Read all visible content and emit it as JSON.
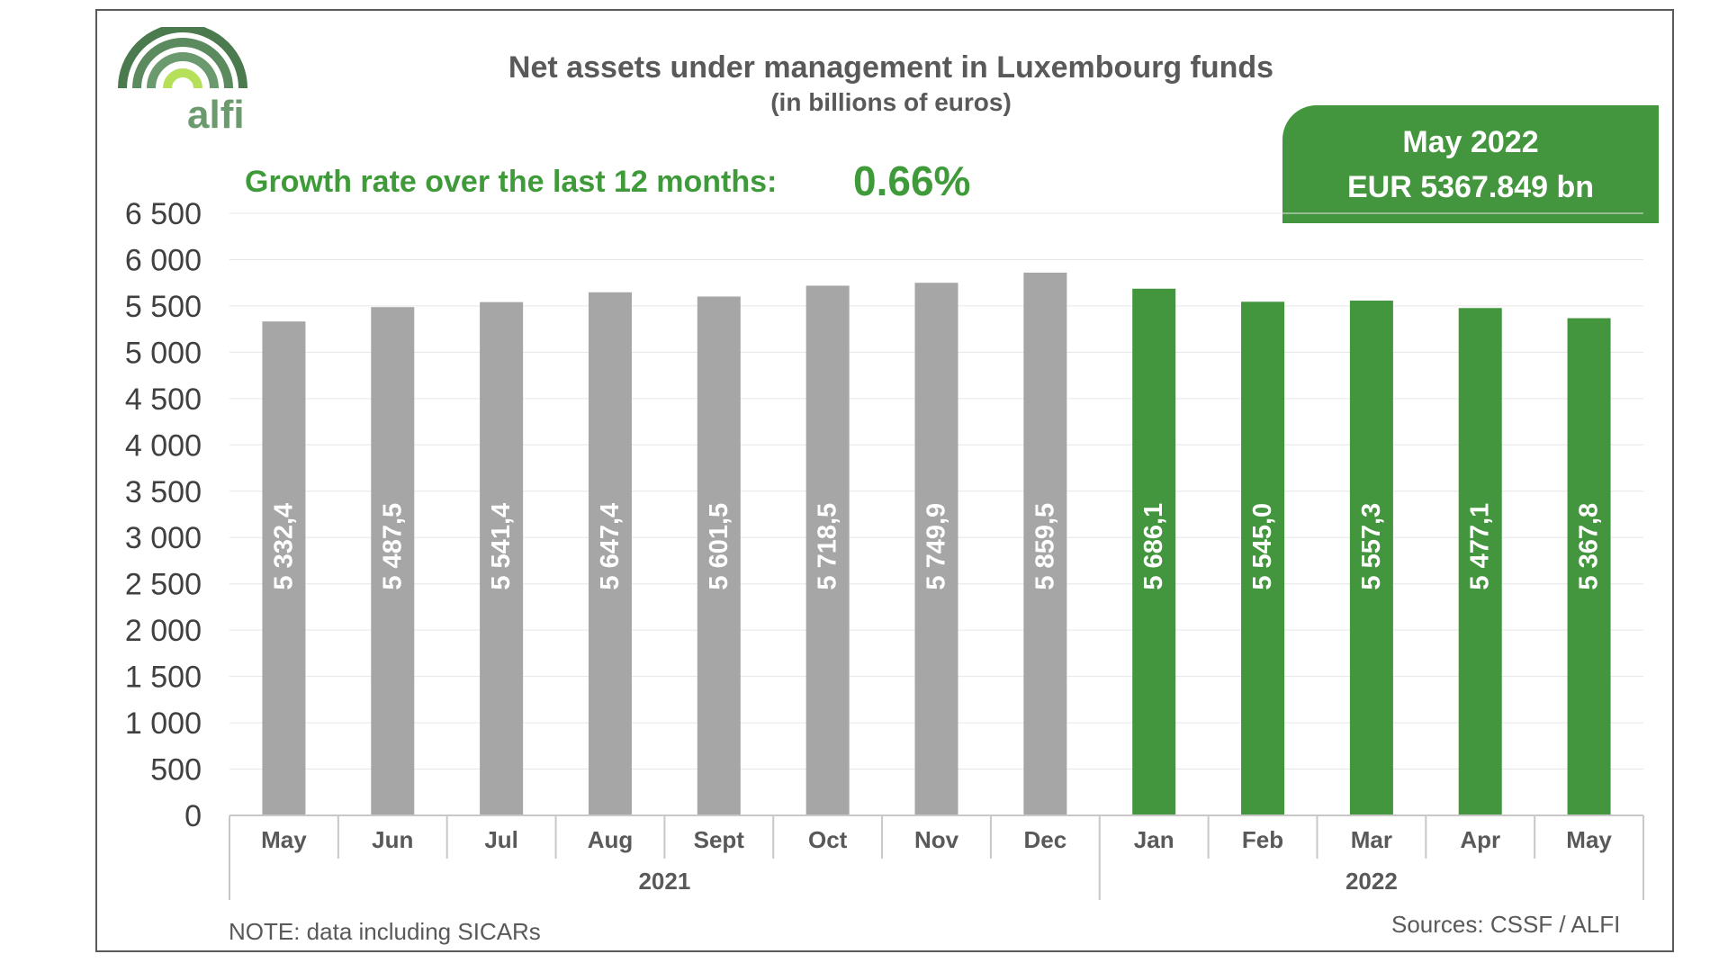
{
  "logo": {
    "text": "alfi",
    "colors": {
      "dark": "#4a7a4e",
      "mid": "#6a9a6e",
      "light": "#b6e05a"
    }
  },
  "header": {
    "title": "Net assets under management in Luxembourg funds",
    "subtitle": "(in billions of euros)"
  },
  "growth": {
    "label": "Growth rate over the last 12 months:",
    "value": "0.66%"
  },
  "callout": {
    "line1": "May 2022",
    "line2": "EUR 5367.849 bn",
    "color": "#43963d"
  },
  "footer": {
    "note": "NOTE: data including SICARs",
    "sources": "Sources: CSSF / ALFI"
  },
  "chart_data": {
    "type": "bar",
    "categories": [
      "May",
      "Jun",
      "Jul",
      "Aug",
      "Sept",
      "Oct",
      "Nov",
      "Dec",
      "Jan",
      "Feb",
      "Mar",
      "Apr",
      "May"
    ],
    "groups": [
      {
        "label": "2021",
        "start": 0,
        "end": 7
      },
      {
        "label": "2022",
        "start": 8,
        "end": 12
      }
    ],
    "values": [
      5332.4,
      5487.5,
      5541.4,
      5647.4,
      5601.5,
      5718.5,
      5749.9,
      5859.5,
      5686.1,
      5545.0,
      5557.3,
      5477.1,
      5367.8
    ],
    "value_labels": [
      "5 332,4",
      "5 487,5",
      "5 541,4",
      "5 647,4",
      "5 601,5",
      "5 718,5",
      "5 749,9",
      "5 859,5",
      "5 686,1",
      "5 545,0",
      "5 557,3",
      "5 477,1",
      "5 367,8"
    ],
    "bar_colors": [
      "#a6a6a6",
      "#a6a6a6",
      "#a6a6a6",
      "#a6a6a6",
      "#a6a6a6",
      "#a6a6a6",
      "#a6a6a6",
      "#a6a6a6",
      "#43963d",
      "#43963d",
      "#43963d",
      "#43963d",
      "#43963d"
    ],
    "yticks": [
      0,
      500,
      1000,
      1500,
      2000,
      2500,
      3000,
      3500,
      4000,
      4500,
      5000,
      5500,
      6000,
      6500
    ],
    "ytick_labels": [
      "0",
      "500",
      "1 000",
      "1 500",
      "2 000",
      "2 500",
      "3 000",
      "3 500",
      "4 000",
      "4 500",
      "5 000",
      "5 500",
      "6 000",
      "6 500"
    ],
    "ylim": [
      0,
      6500
    ],
    "grid": true,
    "legend": "none"
  }
}
